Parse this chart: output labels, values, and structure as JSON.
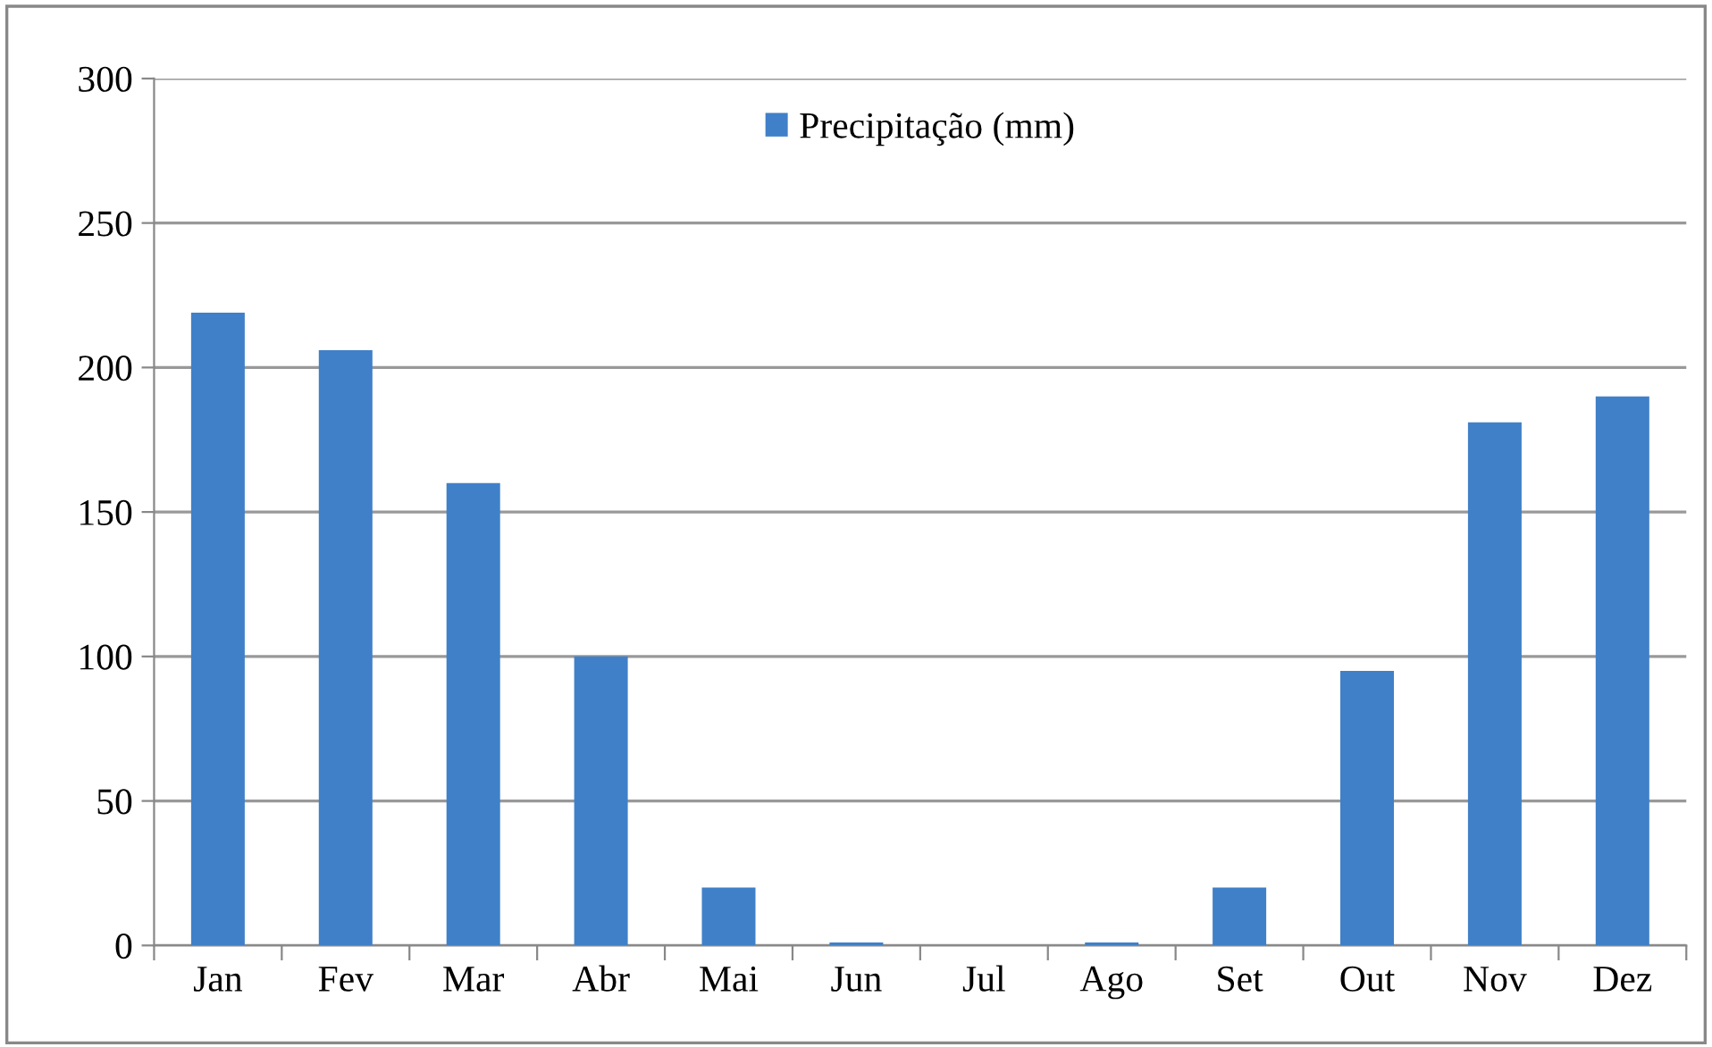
{
  "chart_data": {
    "type": "bar",
    "categories": [
      "Jan",
      "Fev",
      "Mar",
      "Abr",
      "Mai",
      "Jun",
      "Jul",
      "Ago",
      "Set",
      "Out",
      "Nov",
      "Dez"
    ],
    "series": [
      {
        "name": "Precipitação (mm)",
        "color": "#4080c8",
        "values": [
          219,
          206,
          160,
          100,
          20,
          1,
          0,
          1,
          20,
          95,
          181,
          190
        ]
      }
    ],
    "ylim": [
      0,
      300
    ],
    "yticks": [
      0,
      50,
      100,
      150,
      200,
      250,
      300
    ],
    "grid": "y",
    "legend": "top"
  }
}
